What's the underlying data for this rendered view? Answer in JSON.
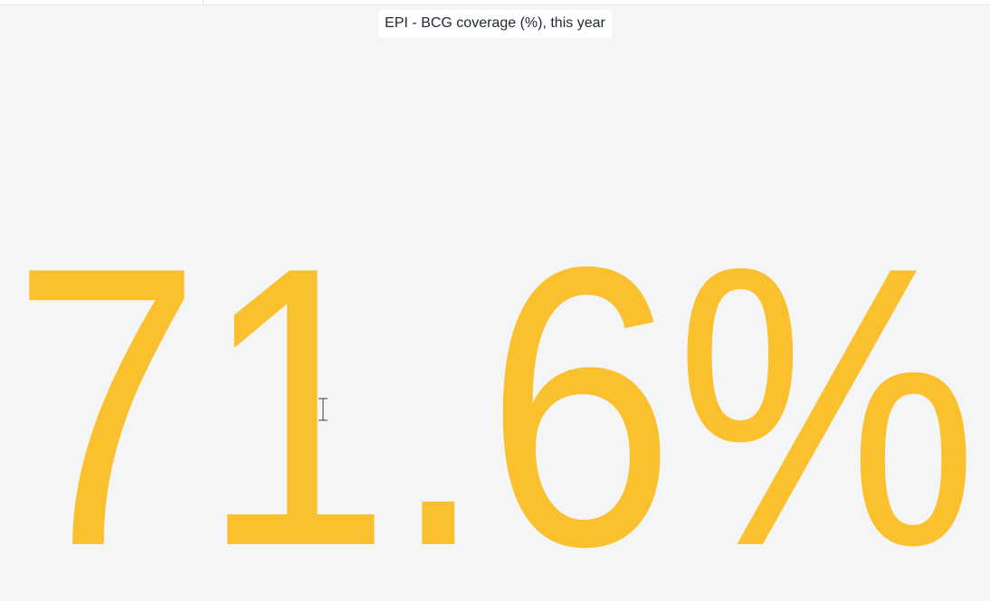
{
  "visualization": {
    "title": "EPI - BCG coverage (%), this year",
    "value_text": "71.6%",
    "value": 71.6,
    "unit": "%",
    "value_color": "#FBC02D"
  }
}
